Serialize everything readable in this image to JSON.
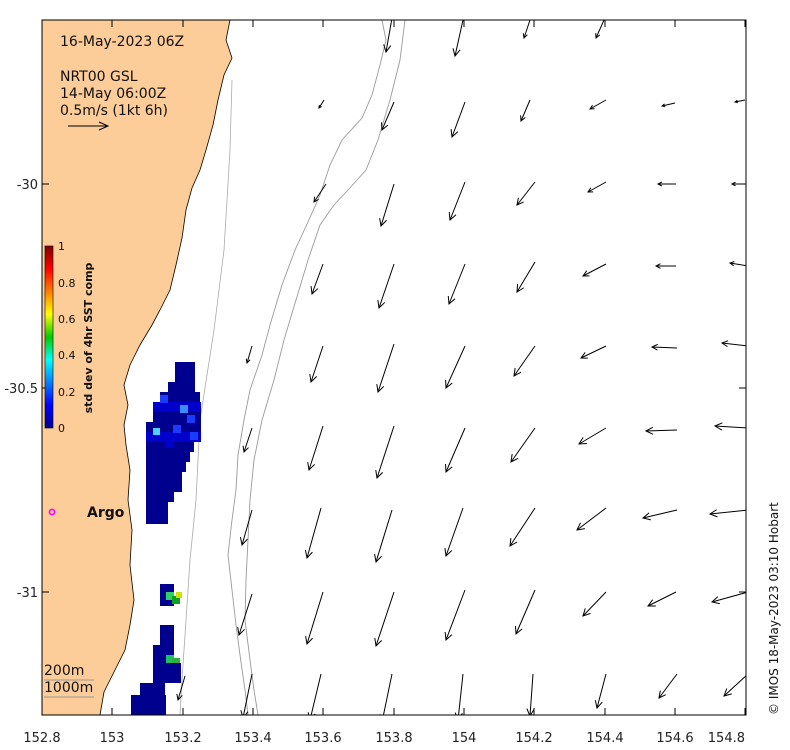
{
  "map": {
    "date_label": "16-May-2023 06Z",
    "current_source": "NRT00 GSL",
    "current_time": "14-May 06:00Z",
    "scale_label": "0.5m/s (1kt 6h)",
    "argo_label": "Argo",
    "isobath_labels": [
      "200m",
      "1000m"
    ],
    "credit": "© IMOS 18-May-2023 03:10 Hobart",
    "colorbar": {
      "label": "std dev of 4hr SST comp",
      "ticks": [
        "1",
        "0.8",
        "0.6",
        "0.4",
        "0.2",
        "0"
      ]
    },
    "x_ticks": [
      "152.8",
      "153",
      "153.2",
      "153.4",
      "153.6",
      "153.8",
      "154",
      "154.2",
      "154.4",
      "154.6",
      "154.8"
    ],
    "y_ticks": [
      "-30",
      "-30.5",
      "-31"
    ],
    "colors": {
      "land": "#fccc99",
      "argo": "#ff00ff",
      "isobath": "#999999"
    }
  }
}
